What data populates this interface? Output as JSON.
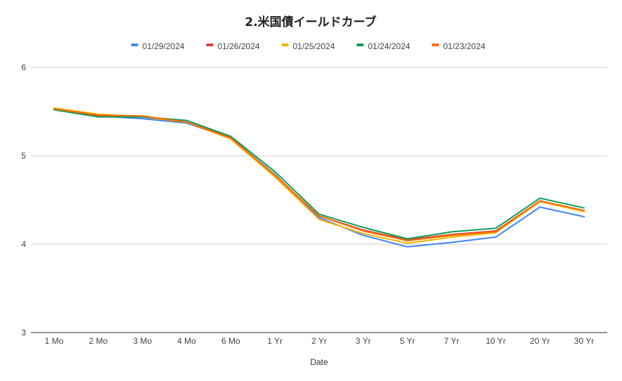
{
  "chart_data": {
    "type": "line",
    "title": "2.米国債イールドカーブ",
    "xlabel": "Date",
    "ylabel": "",
    "categories": [
      "1 Mo",
      "2 Mo",
      "3 Mo",
      "4 Mo",
      "6 Mo",
      "1 Yr",
      "2 Yr",
      "3 Yr",
      "5 Yr",
      "7 Yr",
      "10 Yr",
      "20 Yr",
      "30 Yr"
    ],
    "ylim": [
      3,
      6
    ],
    "yticks": [
      "3",
      "4",
      "5",
      "6"
    ],
    "grid": true,
    "legend_position": "top",
    "series": [
      {
        "name": "01/29/2024",
        "color": "#4285f4",
        "values": [
          5.53,
          5.45,
          5.42,
          5.37,
          5.2,
          4.79,
          4.3,
          4.1,
          3.97,
          4.02,
          4.08,
          4.42,
          4.31
        ]
      },
      {
        "name": "01/26/2024",
        "color": "#db4437",
        "values": [
          5.53,
          5.45,
          5.44,
          5.38,
          5.21,
          4.77,
          4.32,
          4.16,
          4.05,
          4.11,
          4.15,
          4.49,
          4.38
        ]
      },
      {
        "name": "01/25/2024",
        "color": "#f4b400",
        "values": [
          5.54,
          5.47,
          5.44,
          5.38,
          5.19,
          4.76,
          4.28,
          4.12,
          4.01,
          4.08,
          4.13,
          4.48,
          4.37
        ]
      },
      {
        "name": "01/24/2024",
        "color": "#0f9d58",
        "values": [
          5.52,
          5.44,
          5.44,
          5.4,
          5.22,
          4.82,
          4.34,
          4.19,
          4.06,
          4.14,
          4.18,
          4.52,
          4.41
        ]
      },
      {
        "name": "01/23/2024",
        "color": "#ff6d01",
        "values": [
          5.53,
          5.46,
          5.45,
          5.38,
          5.2,
          4.78,
          4.32,
          4.15,
          4.04,
          4.1,
          4.14,
          4.49,
          4.38
        ]
      }
    ]
  }
}
